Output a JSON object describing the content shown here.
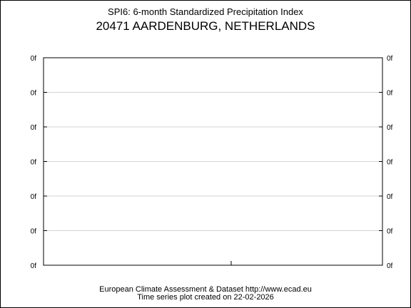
{
  "title": "SPI6: 6-month Standardized Precipitation Index",
  "subtitle": "20471 AARDENBURG, NETHERLANDS",
  "footer": {
    "line1": "European Climate Assessment & Dataset  http://www.ecad.eu",
    "line2": "Time series plot created on 22-02-2026"
  },
  "chart_data": {
    "type": "line",
    "title": "SPI6: 6-month Standardized Precipitation Index",
    "subtitle": "20471 AARDENBURG, NETHERLANDS",
    "xlabel": "",
    "ylabel": "",
    "series": [],
    "y_tick_labels": [
      "0f",
      "0f",
      "0f",
      "0f",
      "0f",
      "0f",
      "0f"
    ],
    "grid": true,
    "gridline_color": "#d3d3d3"
  }
}
